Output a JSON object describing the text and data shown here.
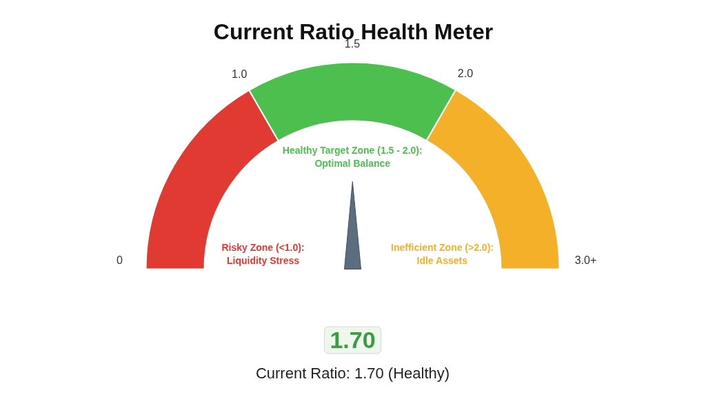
{
  "chart_data": {
    "type": "donut",
    "title": "Current Ratio Health Meter",
    "categories": [
      "Risky Zone (<1.0):\nLiquidity Stress",
      "Healthy Target Zone (1.5 - 2.0):\nOptimal Balance",
      "Inefficient Zone (>2.0):\nIdle Assets"
    ],
    "values": [
      33.3,
      33.3,
      33.4
    ],
    "colors": [
      "#e03a33",
      "#4cbf4f",
      "#f5b02a"
    ],
    "needle": "Healthy Target Zone (1.5 - 2.0):\nOptimal Balance",
    "annotations": [
      "0",
      "1.0",
      "1.5",
      "2.0",
      "3.0+",
      "1.70",
      "Current Ratio: 1.70 (Healthy)"
    ]
  }
}
